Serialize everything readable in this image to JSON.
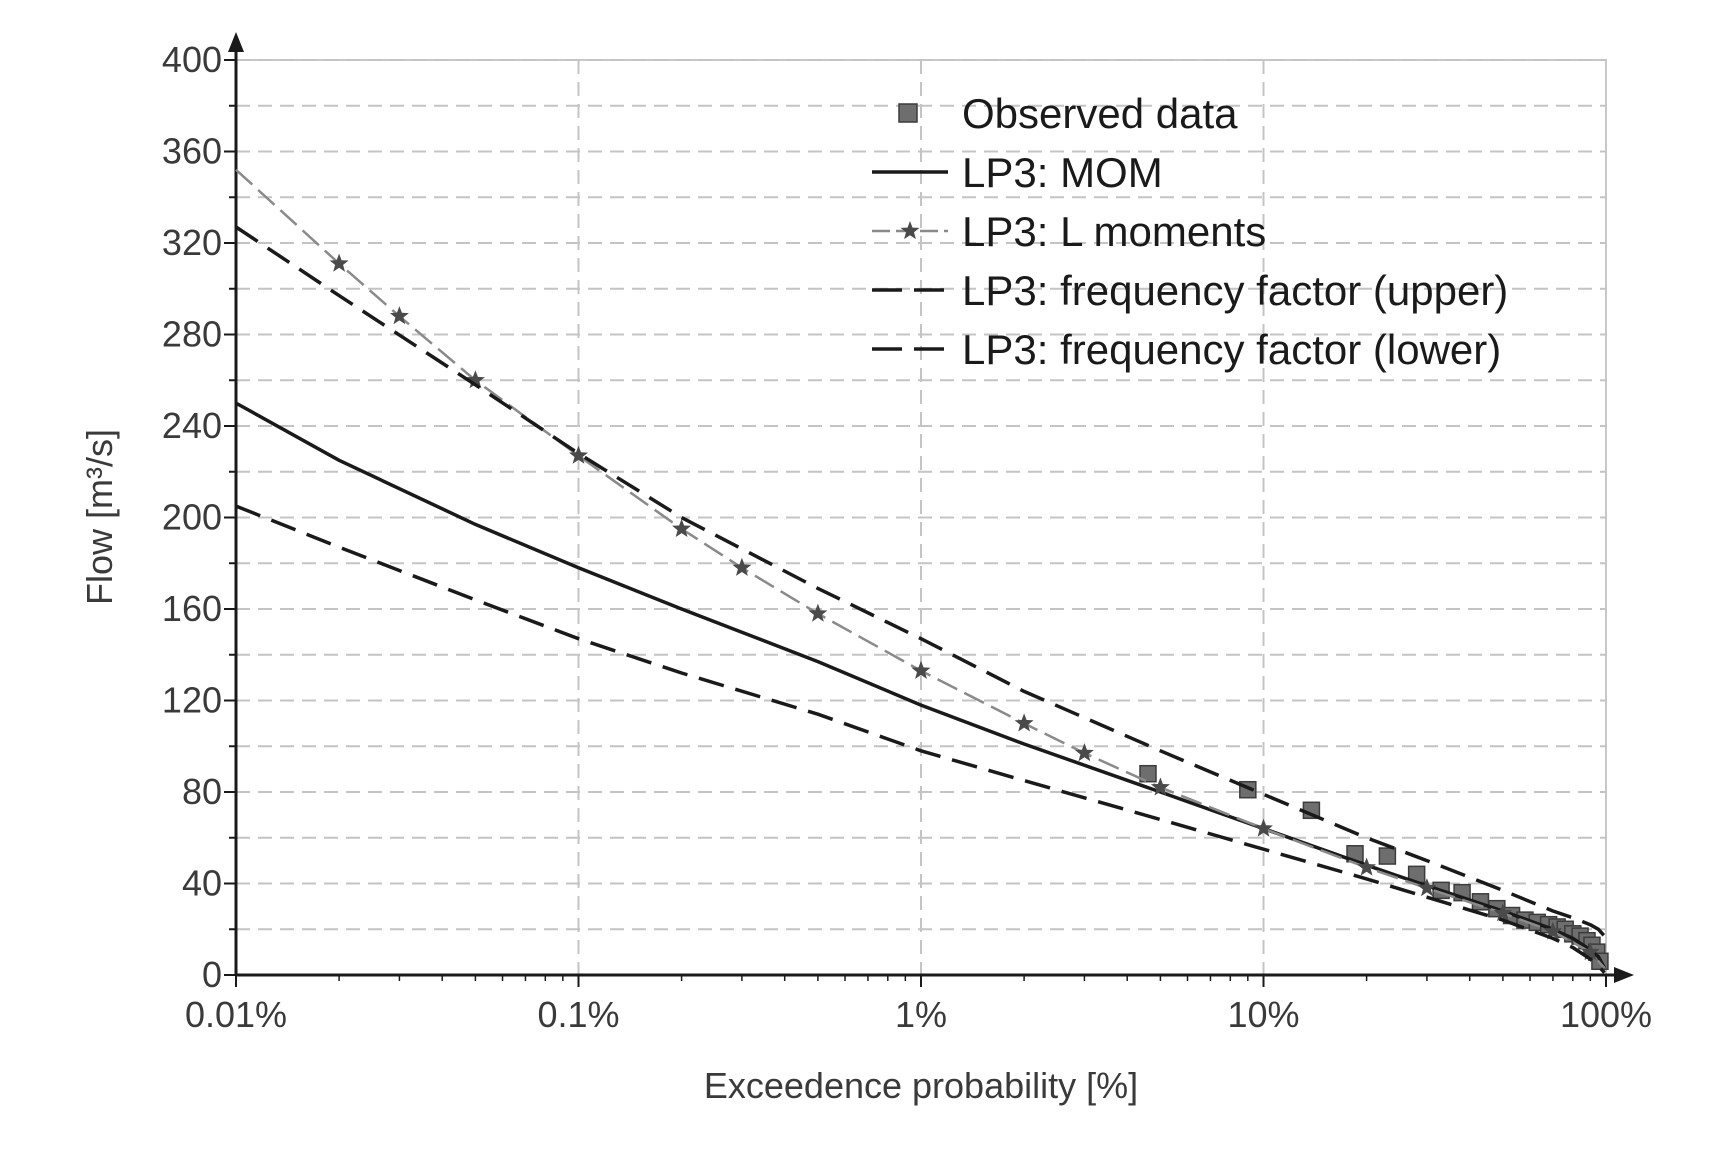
{
  "chart_data": {
    "type": "line",
    "title": "",
    "xlabel": "Exceedence probability [%]",
    "ylabel": "Flow [m³/s]",
    "x_scale": "log",
    "xlim": [
      0.01,
      100
    ],
    "ylim": [
      0,
      400
    ],
    "grid": true,
    "legend_position": "top-right",
    "x_ticks": [
      {
        "value": 0.01,
        "label": "0.01%"
      },
      {
        "value": 0.1,
        "label": "0.1%"
      },
      {
        "value": 1,
        "label": "1%"
      },
      {
        "value": 10,
        "label": "10%"
      },
      {
        "value": 100,
        "label": "100%"
      }
    ],
    "y_ticks": [
      {
        "value": 0,
        "label": "0"
      },
      {
        "value": 40,
        "label": "40"
      },
      {
        "value": 80,
        "label": "80"
      },
      {
        "value": 120,
        "label": "120"
      },
      {
        "value": 160,
        "label": "160"
      },
      {
        "value": 200,
        "label": "200"
      },
      {
        "value": 240,
        "label": "240"
      },
      {
        "value": 280,
        "label": "280"
      },
      {
        "value": 320,
        "label": "320"
      },
      {
        "value": 360,
        "label": "360"
      },
      {
        "value": 400,
        "label": "400"
      }
    ],
    "series": [
      {
        "name": "Observed data",
        "style": "markers-square",
        "color": "#6e6e6e",
        "x": [
          4.6,
          9,
          13.8,
          18.5,
          23,
          28,
          33,
          38,
          43,
          48,
          53,
          58,
          63,
          68,
          72,
          76,
          80,
          84,
          88,
          91,
          94,
          96
        ],
        "y": [
          88,
          81,
          72,
          53,
          52,
          44,
          37,
          36,
          32,
          29,
          26,
          24,
          23,
          22,
          21,
          20,
          18,
          17,
          15,
          13,
          10,
          6
        ]
      },
      {
        "name": "LP3: MOM",
        "style": "solid",
        "color": "#1a1a1a",
        "x": [
          0.01,
          0.02,
          0.05,
          0.1,
          0.2,
          0.5,
          1,
          2,
          5,
          10,
          20,
          30,
          50,
          70,
          80,
          90,
          95,
          99
        ],
        "y": [
          250,
          225,
          197,
          178,
          160,
          137,
          118,
          101,
          80,
          64,
          48,
          39,
          28,
          20,
          16,
          11,
          8,
          3
        ]
      },
      {
        "name": "LP3: L moments",
        "style": "dashed-star",
        "color": "#8a8a8a",
        "x": [
          0.01,
          0.02,
          0.03,
          0.05,
          0.1,
          0.2,
          0.3,
          0.5,
          1,
          2,
          3,
          5,
          10,
          20,
          30,
          50,
          70,
          90,
          99
        ],
        "y": [
          352,
          311,
          288,
          260,
          227,
          195,
          178,
          158,
          133,
          110,
          97,
          82,
          64,
          47,
          38,
          27,
          19,
          10,
          3
        ]
      },
      {
        "name": "LP3: frequency factor (upper)",
        "style": "dashed",
        "color": "#1a1a1a",
        "x": [
          0.01,
          0.02,
          0.05,
          0.1,
          0.2,
          0.5,
          1,
          2,
          5,
          10,
          20,
          30,
          50,
          70,
          80,
          90,
          95,
          99
        ],
        "y": [
          327,
          297,
          258,
          228,
          200,
          169,
          147,
          124,
          98,
          79,
          60,
          50,
          37,
          28,
          25,
          22,
          20,
          17
        ]
      },
      {
        "name": "LP3: frequency factor (lower)",
        "style": "dashed",
        "color": "#1a1a1a",
        "x": [
          0.01,
          0.02,
          0.05,
          0.1,
          0.2,
          0.5,
          1,
          2,
          5,
          10,
          20,
          30,
          50,
          70,
          80,
          90,
          95,
          99
        ],
        "y": [
          205,
          187,
          164,
          147,
          132,
          114,
          98,
          85,
          68,
          55,
          42,
          34,
          24,
          16,
          12,
          7,
          4,
          1
        ]
      }
    ]
  }
}
